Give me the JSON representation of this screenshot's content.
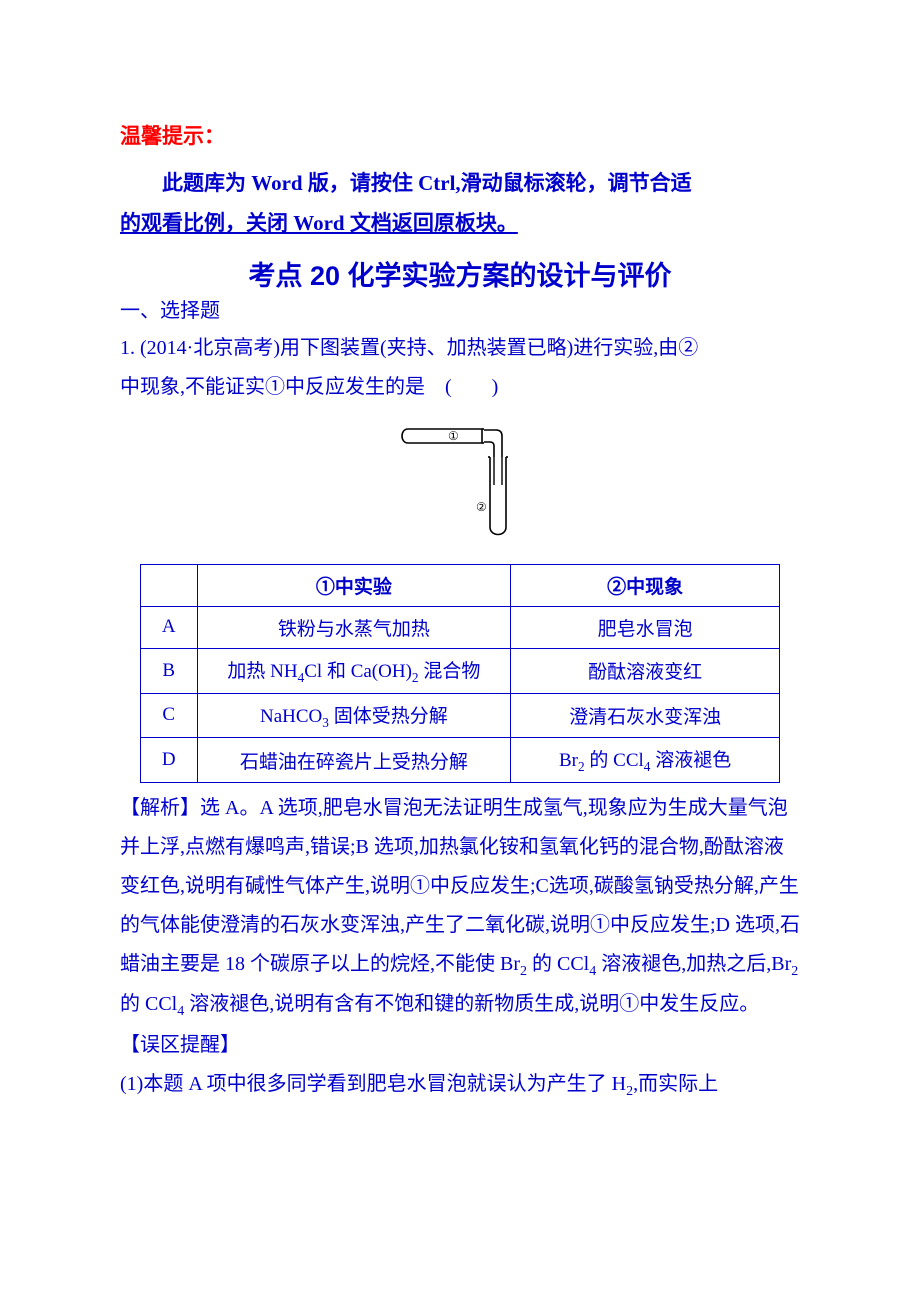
{
  "hint": {
    "title": "温馨提示：",
    "body_line1": "此题库为 Word 版，请按住 Ctrl,滑动鼠标滚轮，调节合适",
    "body_line2": "的观看比例，关闭 Word 文档返回原板块。"
  },
  "kaodian_title": "考点 20  化学实验方案的设计与评价",
  "section1": "一、选择题",
  "q1": {
    "stem_line1": "1. (2014·北京高考)用下图装置(夹持、加热装置已略)进行实验,由②",
    "stem_line2": "中现象,不能证实①中反应发生的是　(　　)"
  },
  "diagram": {
    "label1": "①",
    "label2": "②",
    "width": 140,
    "height": 130,
    "stroke": "#000000",
    "label_color": "#000000"
  },
  "table": {
    "headers": [
      "",
      "①中实验",
      "②中现象"
    ],
    "rows": [
      {
        "label": "A",
        "col1": "铁粉与水蒸气加热",
        "col2": "肥皂水冒泡"
      },
      {
        "label": "B",
        "col1_html": "加热 NH<sub class='sub4'>4</sub>Cl 和 Ca(OH)<sub class='sub2'>2</sub> 混合物",
        "col2": "酚酞溶液变红"
      },
      {
        "label": "C",
        "col1_html": "NaHCO<sub class='sub3'>3</sub> 固体受热分解",
        "col2": "澄清石灰水变浑浊"
      },
      {
        "label": "D",
        "col1": "石蜡油在碎瓷片上受热分解",
        "col2_html": "Br<sub class='sub2'>2</sub> 的 CCl<sub class='sub4'>4</sub> 溶液褪色"
      }
    ],
    "col_widths": [
      "46px",
      "320px",
      "274px"
    ]
  },
  "analysis": {
    "text_html": "【解析】选 A。A 选项,肥皂水冒泡无法证明生成氢气,现象应为生成大量气泡并上浮,点燃有爆鸣声,错误;B 选项,加热氯化铵和氢氧化钙的混合物,酚酞溶液变红色,说明有碱性气体产生,说明①中反应发生;C选项,碳酸氢钠受热分解,产生的气体能使澄清的石灰水变浑浊,产生了二氧化碳,说明①中反应发生;D 选项,石蜡油主要是 18 个碳原子以上的烷烃,不能使 Br<sub class='sub2'>2</sub> 的 CCl<sub class='sub4'>4</sub> 溶液褪色,加热之后,Br<sub class='sub2'>2</sub> 的 CCl<sub class='sub4'>4</sub> 溶液褪色,说明有含有不饱和键的新物质生成,说明①中发生反应。"
  },
  "warn": {
    "title": "【误区提醒】",
    "line1_html": "(1)本题 A 项中很多同学看到肥皂水冒泡就误认为产生了 H<sub class='sub2'>2</sub>,而实际上"
  },
  "colors": {
    "red": "#ff0000",
    "blue": "#0000cc",
    "black": "#000000"
  }
}
